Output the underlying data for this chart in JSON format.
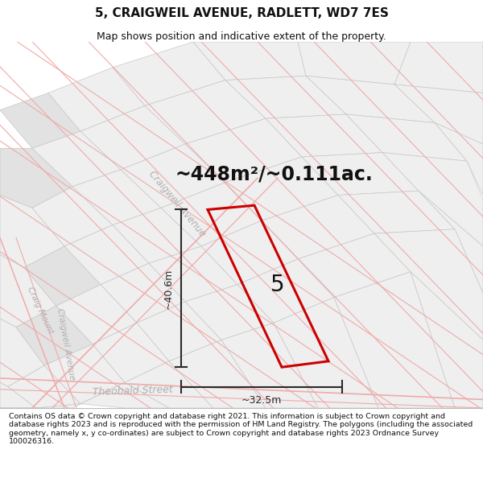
{
  "title": "5, CRAIGWEIL AVENUE, RADLETT, WD7 7ES",
  "subtitle": "Map shows position and indicative extent of the property.",
  "area_text": "~448m²/~0.111ac.",
  "width_label": "~32.5m",
  "height_label": "~40.6m",
  "property_number": "5",
  "footer_text": "Contains OS data © Crown copyright and database right 2021. This information is subject to Crown copyright and database rights 2023 and is reproduced with the permission of HM Land Registry. The polygons (including the associated geometry, namely x, y co-ordinates) are subject to Crown copyright and database rights 2023 Ordnance Survey 100026316.",
  "map_bg": "#ffffff",
  "gray_block": "#e2e2e2",
  "light_gray": "#efefef",
  "road_stroke": "#c8c8c8",
  "red_line_color": "#f0aaaa",
  "property_outline_color": "#cc0000",
  "dim_line_color": "#2a2a2a",
  "title_color": "#111111",
  "footer_color": "#111111",
  "street_label_color": "#b0b0b0",
  "title_fontsize": 11,
  "subtitle_fontsize": 9,
  "area_fontsize": 17,
  "footer_fontsize": 6.8
}
